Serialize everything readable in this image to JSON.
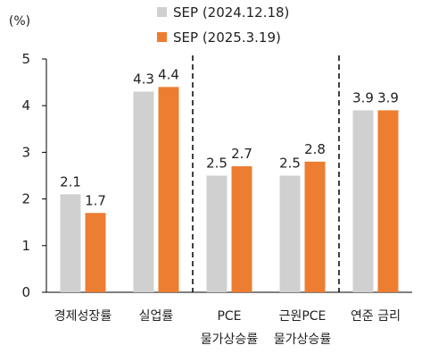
{
  "chart_data": {
    "type": "bar",
    "unit_label": "(%)",
    "categories": [
      [
        "경제성장률"
      ],
      [
        "실업률"
      ],
      [
        "PCE",
        "물가상승률"
      ],
      [
        "근원PCE",
        "물가상승률"
      ],
      [
        "연준 금리"
      ]
    ],
    "series": [
      {
        "name": "SEP (2024.12.18)",
        "color": "#d0d0d0",
        "values": [
          2.1,
          4.3,
          2.5,
          2.5,
          3.9
        ],
        "labels": [
          "2.1",
          "4.3",
          "2.5",
          "2.5",
          "3.9"
        ]
      },
      {
        "name": "SEP (2025.3.19)",
        "color": "#ed7d31",
        "values": [
          1.7,
          4.4,
          2.7,
          2.8,
          3.9
        ],
        "labels": [
          "1.7",
          "4.4",
          "2.7",
          "2.8",
          "3.9"
        ]
      }
    ],
    "ylim": [
      0,
      5
    ],
    "yticks": [
      "0",
      "1",
      "2",
      "3",
      "4",
      "5"
    ],
    "dashed_separators_after_category": [
      1,
      3
    ],
    "legend_position": "top",
    "grid": false
  }
}
